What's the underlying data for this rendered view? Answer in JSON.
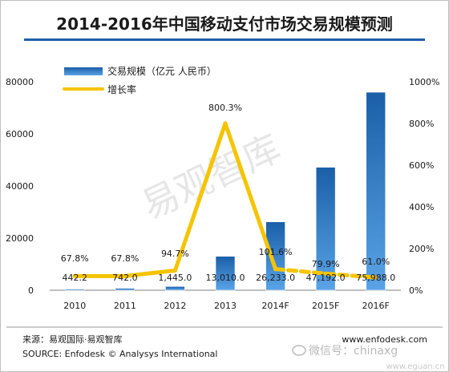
{
  "chart_data": {
    "type": "bar",
    "title": "2014-2016年中国移动支付市场交易规模预测",
    "categories": [
      "2010",
      "2011",
      "2012",
      "2013",
      "2014F",
      "2015F",
      "2016F"
    ],
    "series": [
      {
        "name": "交易规模（亿元 人民币）",
        "type": "bar",
        "axis": "left",
        "values": [
          442.2,
          742.0,
          1445.0,
          13010.0,
          26233.0,
          47192.0,
          75988.0
        ],
        "labels": [
          "442.2",
          "742.0",
          "1,445.0",
          "13,010.0",
          "26,233.0",
          "47,192.0",
          "75,988.0"
        ]
      },
      {
        "name": "增长率",
        "type": "line",
        "axis": "right",
        "values": [
          67.8,
          67.8,
          94.7,
          800.3,
          101.6,
          79.9,
          61.0
        ],
        "labels": [
          "67.8%",
          "67.8%",
          "94.7%",
          "800.3%",
          "101.6%",
          "79.9%",
          "61.0%"
        ]
      }
    ],
    "y_left": {
      "lim": [
        0,
        80000
      ],
      "ticks": [
        "0",
        "20000",
        "40000",
        "60000",
        "80000"
      ]
    },
    "y_right": {
      "lim": [
        0,
        1000
      ],
      "ticks": [
        "0%",
        "200%",
        "400%",
        "600%",
        "800%",
        "1000%"
      ]
    },
    "grid": false,
    "legend": "top-left"
  },
  "footer": {
    "source_cn": "来源：易观国际·易观智库",
    "source_en": "SOURCE: Enfodesk © Analysys International",
    "website": "www.enfodesk.com"
  },
  "watermarks": {
    "center": "易观智库",
    "wechat": "微信号：chinaxg",
    "site": "www.eguan.cn"
  },
  "colors": {
    "bar": "#1a5fa8",
    "bar_light": "#5aa3e6",
    "line": "#f5c400",
    "title_rule": "#1f5ea8"
  }
}
